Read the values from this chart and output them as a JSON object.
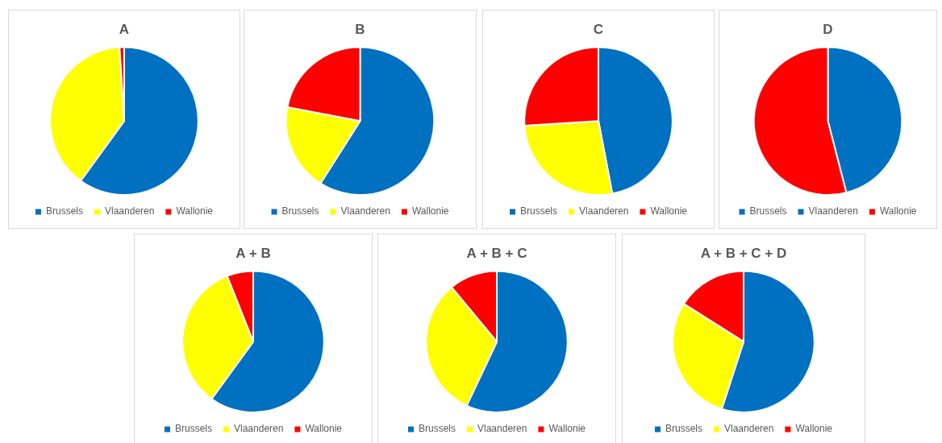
{
  "chart_data": [
    {
      "type": "pie",
      "title": "A",
      "categories": [
        "Brussels",
        "Vlaanderen",
        "Wallonie"
      ],
      "values": [
        60,
        39,
        1
      ],
      "colors": [
        "#0070c0",
        "#ffff00",
        "#ff0000"
      ],
      "legend": "bottom"
    },
    {
      "type": "pie",
      "title": "B",
      "categories": [
        "Brussels",
        "Vlaanderen",
        "Wallonie"
      ],
      "values": [
        59,
        19,
        22
      ],
      "colors": [
        "#0070c0",
        "#ffff00",
        "#ff0000"
      ],
      "legend": "bottom"
    },
    {
      "type": "pie",
      "title": "C",
      "categories": [
        "Brussels",
        "Vlaanderen",
        "Wallonie"
      ],
      "values": [
        47,
        27,
        26
      ],
      "colors": [
        "#0070c0",
        "#ffff00",
        "#ff0000"
      ],
      "legend": "bottom"
    },
    {
      "type": "pie",
      "title": "D",
      "categories": [
        "Brussels",
        "Vlaanderen",
        "Wallonie"
      ],
      "values": [
        46,
        0,
        54
      ],
      "colors": [
        "#0070c0",
        "#0070c0",
        "#ff0000"
      ],
      "legend": "bottom"
    },
    {
      "type": "pie",
      "title": "A + B",
      "categories": [
        "Brussels",
        "Vlaanderen",
        "Wallonie"
      ],
      "values": [
        60,
        34,
        6
      ],
      "colors": [
        "#0070c0",
        "#ffff00",
        "#ff0000"
      ],
      "legend": "bottom"
    },
    {
      "type": "pie",
      "title": "A + B + C",
      "categories": [
        "Brussels",
        "Vlaanderen",
        "Wallonie"
      ],
      "values": [
        57,
        32,
        11
      ],
      "colors": [
        "#0070c0",
        "#ffff00",
        "#ff0000"
      ],
      "legend": "bottom"
    },
    {
      "type": "pie",
      "title": "A + B + C + D",
      "categories": [
        "Brussels",
        "Vlaanderen",
        "Wallonie"
      ],
      "values": [
        55,
        29,
        16
      ],
      "colors": [
        "#0070c0",
        "#ffff00",
        "#ff0000"
      ],
      "legend": "bottom"
    }
  ]
}
